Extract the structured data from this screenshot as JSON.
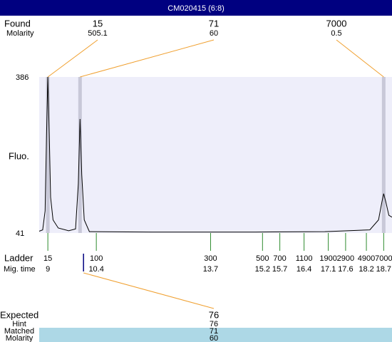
{
  "title": "CM020415 (6:8)",
  "found": {
    "label": "Found",
    "molarity_label": "Molarity",
    "peaks": [
      {
        "size": 15,
        "molarity": 505.1,
        "time": 9
      },
      {
        "size": 71,
        "molarity": 60,
        "time": 9.93
      },
      {
        "size": 7000,
        "molarity": 0.5,
        "time": 18.7
      }
    ]
  },
  "plot": {
    "y_label": "Fluo.",
    "xlim": [
      8.75,
      18.94
    ],
    "ylim": [
      41,
      386
    ],
    "yticks": [
      41,
      386
    ],
    "trace": {
      "x": [
        8.75,
        8.85,
        8.92,
        8.96,
        9.0,
        9.04,
        9.08,
        9.15,
        9.3,
        9.6,
        9.8,
        9.88,
        9.93,
        9.98,
        10.05,
        10.2,
        12,
        15,
        17,
        18.3,
        18.55,
        18.65,
        18.7,
        18.76,
        18.85,
        18.94
      ],
      "y": [
        45,
        48,
        90,
        250,
        386,
        260,
        120,
        70,
        52,
        46,
        50,
        150,
        293,
        170,
        70,
        44,
        43,
        43,
        44,
        48,
        70,
        110,
        128,
        110,
        80,
        76
      ]
    }
  },
  "ladder": {
    "label": "Ladder",
    "time_label": "Mig. time",
    "sizes": [
      15,
      100,
      300,
      500,
      700,
      1100,
      1900,
      2900,
      4900,
      7000
    ],
    "times": [
      9,
      10.4,
      13.7,
      15.2,
      15.7,
      16.4,
      17.1,
      17.6,
      18.2,
      18.7
    ]
  },
  "expected": {
    "label": "Expected",
    "hint_label": "Hint",
    "matched_label": "Matched",
    "molarity_label": "Molarity",
    "size": 76,
    "hint": 76,
    "matched": 71,
    "molarity": 60,
    "time": 10.03
  }
}
